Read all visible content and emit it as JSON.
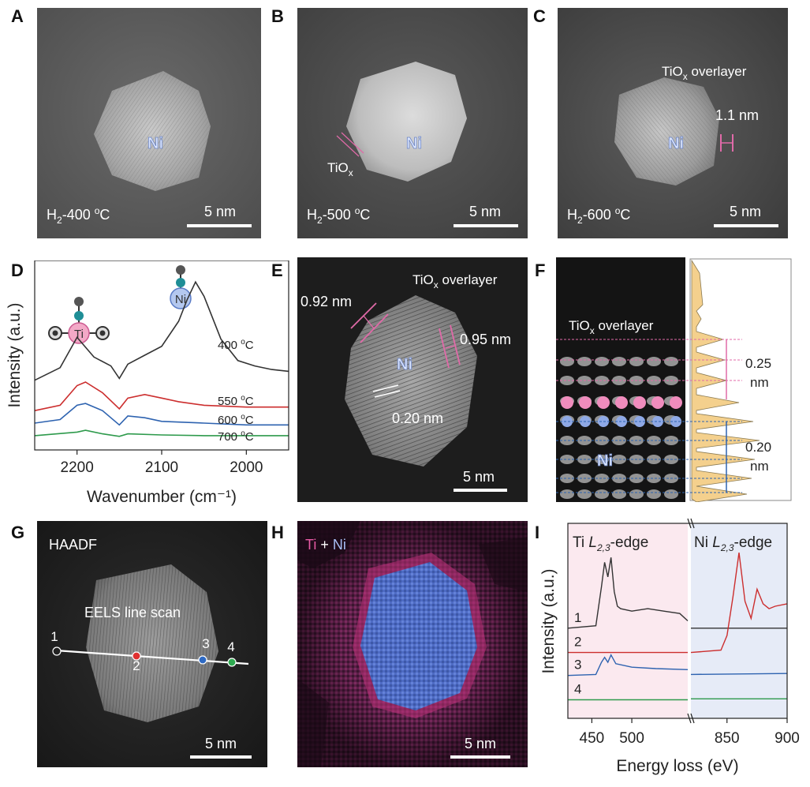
{
  "panels": {
    "A": {
      "label": "A",
      "particle": "Ni",
      "condition_main": "H",
      "condition_sub": "2",
      "condition_rest": "-400 ",
      "condition_sup": "o",
      "condition_end": "C",
      "scale": "5 nm"
    },
    "B": {
      "label": "B",
      "particle": "Ni",
      "tio_main": "TiO",
      "tio_sub": "x",
      "condition_main": "H",
      "condition_sub": "2",
      "condition_rest": "-500 ",
      "condition_sup": "o",
      "condition_end": "C",
      "scale": "5 nm"
    },
    "C": {
      "label": "C",
      "particle": "Ni",
      "overlayer_main": "TiO",
      "overlayer_sub": "x",
      "overlayer_rest": " overlayer",
      "thickness": "1.1 nm",
      "condition_main": "H",
      "condition_sub": "2",
      "condition_rest": "-600 ",
      "condition_sup": "o",
      "condition_end": "C",
      "scale": "5 nm"
    },
    "D": {
      "label": "D",
      "icon_ti": "Ti",
      "icon_ni": "Ni"
    },
    "E": {
      "label": "E",
      "overlayer_main": "TiO",
      "overlayer_sub": "x",
      "overlayer_rest": " overlayer",
      "thick1": "0.92 nm",
      "thick2": "0.95 nm",
      "particle": "Ni",
      "spacing": "0.20 nm",
      "scale": "5 nm"
    },
    "F": {
      "label": "F",
      "overlayer_main": "TiO",
      "overlayer_sub": "x",
      "overlayer_rest": " overlayer",
      "particle": "Ni",
      "spacing1_a": "0.25",
      "spacing1_b": "nm",
      "spacing2_a": "0.20",
      "spacing2_b": "nm"
    },
    "G": {
      "label": "G",
      "mode": "HAADF",
      "scan": "EELS line scan",
      "points": [
        "1",
        "2",
        "3",
        "4"
      ],
      "scale": "5 nm"
    },
    "H": {
      "label": "H",
      "ti": "Ti",
      "plus": " + ",
      "ni": "Ni",
      "scale": "5 nm"
    },
    "I": {
      "label": "I",
      "ti_edge_a": "Ti ",
      "ti_edge_b": "L",
      "ti_edge_c": "2,3",
      "ti_edge_d": "-edge",
      "ni_edge_a": "Ni ",
      "ni_edge_b": "L",
      "ni_edge_c": "2,3",
      "ni_edge_d": "-edge",
      "traces": [
        "1",
        "2",
        "3",
        "4"
      ]
    }
  },
  "colors": {
    "trace_black": "#333333",
    "trace_red": "#cc2e2e",
    "trace_blue": "#2e63b0",
    "trace_green": "#2e9a4c",
    "pink": "#e06aa8",
    "blue_dot": "#8fa9e6",
    "ti_bg": "#fbe9ef",
    "ni_bg": "#e6ebf7",
    "profile_fill": "#f4d08d"
  },
  "chart_data": [
    {
      "type": "line",
      "panel": "D",
      "xlabel": "Wavenumber (cm⁻¹)",
      "ylabel": "Intensity (a.u.)",
      "xlim": [
        2250,
        1950
      ],
      "xticks": [
        "2200",
        "2100",
        "2000"
      ],
      "series": [
        {
          "name": "400 °C",
          "label_main": "400 ",
          "label_sup": "o",
          "label_end": "C",
          "color": "#333333",
          "x": [
            2250,
            2220,
            2200,
            2180,
            2160,
            2150,
            2140,
            2120,
            2100,
            2080,
            2070,
            2060,
            2050,
            2030,
            2010,
            1990,
            1970,
            1950
          ],
          "y": [
            2.55,
            2.9,
            3.75,
            3.2,
            2.95,
            2.6,
            3.0,
            3.25,
            3.5,
            4.2,
            4.8,
            5.3,
            4.9,
            3.7,
            3.1,
            2.95,
            2.85,
            2.8
          ]
        },
        {
          "name": "550 °C",
          "label_main": "550 ",
          "label_sup": "o",
          "label_end": "C",
          "color": "#cc2e2e",
          "x": [
            2250,
            2220,
            2200,
            2190,
            2170,
            2150,
            2140,
            2120,
            2100,
            2080,
            2050,
            2000,
            1950
          ],
          "y": [
            1.7,
            1.85,
            2.4,
            2.5,
            2.2,
            1.75,
            2.05,
            2.15,
            2.05,
            1.95,
            1.85,
            1.8,
            1.8
          ]
        },
        {
          "name": "600 °C",
          "label_main": "600 ",
          "label_sup": "o",
          "label_end": "C",
          "color": "#2e63b0",
          "x": [
            2250,
            2220,
            2200,
            2190,
            2170,
            2150,
            2140,
            2120,
            2100,
            2050,
            2000,
            1950
          ],
          "y": [
            1.35,
            1.45,
            1.85,
            1.9,
            1.7,
            1.3,
            1.55,
            1.5,
            1.4,
            1.35,
            1.3,
            1.3
          ]
        },
        {
          "name": "700 °C",
          "label_main": "700 ",
          "label_sup": "o",
          "label_end": "C",
          "color": "#2e9a4c",
          "x": [
            2250,
            2200,
            2190,
            2170,
            2150,
            2140,
            2100,
            2050,
            2000,
            1950
          ],
          "y": [
            1.0,
            1.1,
            1.15,
            1.05,
            0.98,
            1.05,
            1.02,
            1.0,
            1.0,
            1.0
          ]
        }
      ]
    },
    {
      "type": "line",
      "panel": "I",
      "xlabel": "Energy loss (eV)",
      "ylabel": "Intensity (a.u.)",
      "xlim_left": [
        420,
        570
      ],
      "xlim_right": [
        820,
        900
      ],
      "xticks": [
        "450",
        "500",
        "850",
        "900"
      ],
      "series": [
        {
          "name": "1",
          "color": "#333333",
          "ti_x": [
            420,
            455,
            462,
            466,
            470,
            474,
            478,
            482,
            486,
            500,
            520,
            540,
            560,
            570
          ],
          "ti_y": [
            1.55,
            1.6,
            2.4,
            2.9,
            2.6,
            3.0,
            2.3,
            2.0,
            1.95,
            1.9,
            1.95,
            1.9,
            1.85,
            1.7
          ],
          "ni_x": [
            820,
            900
          ],
          "ni_y": [
            1.55,
            1.55
          ]
        },
        {
          "name": "2",
          "color": "#cc2e2e",
          "ti_x": [
            420,
            570
          ],
          "ti_y": [
            1.05,
            1.05
          ],
          "ni_x": [
            820,
            845,
            850,
            855,
            860,
            865,
            870,
            875,
            880,
            885,
            890,
            900
          ],
          "ni_y": [
            1.05,
            1.1,
            1.4,
            2.2,
            3.1,
            2.1,
            1.75,
            2.35,
            2.05,
            1.95,
            2.0,
            2.05
          ]
        },
        {
          "name": "3",
          "color": "#2e63b0",
          "ti_x": [
            420,
            455,
            462,
            466,
            470,
            474,
            480,
            500,
            530,
            570
          ],
          "ti_y": [
            0.58,
            0.6,
            0.85,
            0.95,
            0.85,
            1.0,
            0.82,
            0.75,
            0.72,
            0.7
          ],
          "ni_x": [
            820,
            900
          ],
          "ni_y": [
            0.6,
            0.62
          ]
        },
        {
          "name": "4",
          "color": "#2e9a4c",
          "ti_x": [
            420,
            570
          ],
          "ti_y": [
            0.08,
            0.08
          ],
          "ni_x": [
            820,
            900
          ],
          "ni_y": [
            0.1,
            0.1
          ]
        }
      ]
    }
  ]
}
